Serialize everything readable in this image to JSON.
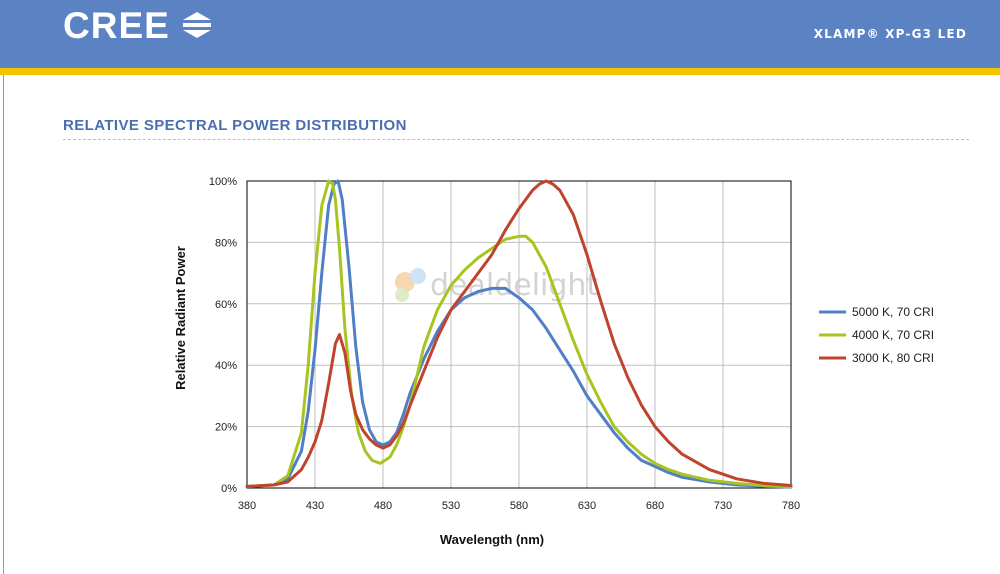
{
  "header": {
    "brand": "CREE",
    "product": "XLAMP® XP-G3 LED",
    "colors": {
      "band": "#5b82c3",
      "stripe": "#f5c400"
    }
  },
  "section": {
    "title": "RELATIVE SPECTRAL POWER DISTRIBUTION"
  },
  "watermark": {
    "text": "dealdelight"
  },
  "chart_data": {
    "type": "line",
    "title": "",
    "xlabel": "Wavelength (nm)",
    "ylabel": "Relative Radiant Power",
    "xlim": [
      380,
      780
    ],
    "ylim": [
      0,
      100
    ],
    "xticks": [
      380,
      430,
      480,
      530,
      580,
      630,
      680,
      730,
      780
    ],
    "yticks": [
      0,
      20,
      40,
      60,
      80,
      100
    ],
    "ytick_labels": [
      "0%",
      "20%",
      "40%",
      "60%",
      "80%",
      "100%"
    ],
    "grid": true,
    "legend_position": "right",
    "series": [
      {
        "name": "5000 K, 70 CRI",
        "color": "#4f7fc4",
        "x": [
          380,
          400,
          410,
          420,
          425,
          430,
          435,
          440,
          444,
          447,
          450,
          455,
          460,
          465,
          470,
          475,
          480,
          485,
          490,
          495,
          500,
          510,
          520,
          530,
          540,
          550,
          560,
          570,
          580,
          590,
          600,
          610,
          620,
          630,
          640,
          650,
          660,
          670,
          680,
          690,
          700,
          720,
          740,
          760,
          780
        ],
        "y": [
          0.5,
          1,
          3,
          12,
          25,
          45,
          70,
          92,
          99,
          100,
          94,
          72,
          46,
          28,
          19,
          15,
          14,
          15,
          18,
          24,
          31,
          42,
          51,
          58,
          62,
          64,
          65,
          65,
          62,
          58,
          52,
          45,
          38,
          30,
          24,
          18,
          13,
          9,
          7,
          5,
          3.5,
          2,
          1,
          0.6,
          0.3
        ]
      },
      {
        "name": "4000 K, 70 CRI",
        "color": "#a8c420",
        "x": [
          380,
          400,
          410,
          420,
          425,
          430,
          435,
          440,
          443,
          445,
          448,
          452,
          457,
          462,
          467,
          472,
          478,
          485,
          490,
          495,
          500,
          510,
          520,
          530,
          540,
          550,
          560,
          570,
          580,
          585,
          590,
          600,
          610,
          620,
          630,
          640,
          650,
          660,
          670,
          680,
          690,
          700,
          720,
          740,
          760,
          780
        ],
        "y": [
          0.5,
          1,
          4,
          18,
          40,
          70,
          92,
          100,
          99,
          94,
          78,
          52,
          30,
          18,
          12,
          9,
          8,
          10,
          14,
          20,
          27,
          46,
          58,
          66,
          71,
          75,
          78,
          81,
          82,
          82,
          80,
          72,
          60,
          48,
          37,
          28,
          20,
          15,
          11,
          8,
          6,
          4.5,
          2.5,
          1.5,
          0.8,
          0.4
        ]
      },
      {
        "name": "3000 K, 80 CRI",
        "color": "#c0432e",
        "x": [
          380,
          400,
          410,
          420,
          425,
          430,
          435,
          440,
          445,
          448,
          452,
          456,
          460,
          465,
          470,
          475,
          480,
          485,
          490,
          495,
          500,
          510,
          520,
          530,
          540,
          550,
          560,
          570,
          580,
          590,
          595,
          600,
          605,
          610,
          620,
          630,
          640,
          650,
          660,
          670,
          680,
          690,
          700,
          720,
          740,
          760,
          780
        ],
        "y": [
          0.5,
          1,
          2,
          6,
          10,
          15,
          22,
          34,
          47,
          50,
          44,
          32,
          24,
          19,
          16,
          14,
          13,
          14,
          17,
          21,
          27,
          38,
          49,
          58,
          64,
          70,
          76,
          84,
          91,
          97,
          99,
          100,
          99,
          97,
          89,
          76,
          61,
          47,
          36,
          27,
          20,
          15,
          11,
          6,
          3,
          1.5,
          0.8
        ]
      }
    ]
  }
}
